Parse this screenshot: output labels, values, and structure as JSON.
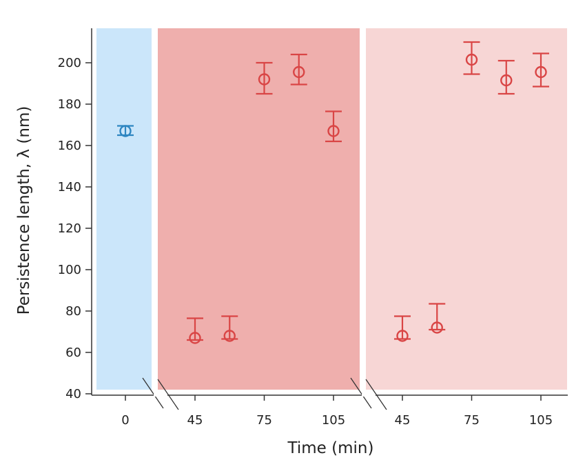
{
  "chart_data": {
    "type": "scatter",
    "title": "",
    "xlabel": "Time (min)",
    "ylabel": "Persistence length, λ (nm)",
    "ylim": [
      40,
      210
    ],
    "y_ticks": [
      40,
      60,
      80,
      100,
      120,
      140,
      160,
      180,
      200
    ],
    "grid": false,
    "axis_breaks": 2,
    "panels": [
      {
        "color": "#cbe6fa",
        "marker_color": "#2e86c1",
        "x_ticks": [
          0
        ],
        "points": [
          {
            "x": 0,
            "y": 167,
            "err_lo": 165,
            "err_hi": 169.5
          }
        ]
      },
      {
        "color": "#efafad",
        "marker_color": "#d94545",
        "x_ticks": [
          45,
          75,
          105
        ],
        "points": [
          {
            "x": 45,
            "y": 67,
            "err_lo": 66,
            "err_hi": 76.5
          },
          {
            "x": 60,
            "y": 68,
            "err_lo": 66.5,
            "err_hi": 77.5
          },
          {
            "x": 75,
            "y": 192,
            "err_lo": 185,
            "err_hi": 200
          },
          {
            "x": 90,
            "y": 195.5,
            "err_lo": 189.5,
            "err_hi": 204
          },
          {
            "x": 105,
            "y": 167,
            "err_lo": 162,
            "err_hi": 176.5
          }
        ]
      },
      {
        "color": "#f7d6d5",
        "marker_color": "#d94545",
        "x_ticks": [
          45,
          75,
          105
        ],
        "points": [
          {
            "x": 45,
            "y": 68,
            "err_lo": 66.5,
            "err_hi": 77.5
          },
          {
            "x": 60,
            "y": 72,
            "err_lo": 71,
            "err_hi": 83.5
          },
          {
            "x": 75,
            "y": 201.5,
            "err_lo": 194.5,
            "err_hi": 210
          },
          {
            "x": 90,
            "y": 191.5,
            "err_lo": 185,
            "err_hi": 201
          },
          {
            "x": 105,
            "y": 195.5,
            "err_lo": 188.5,
            "err_hi": 204.5
          }
        ]
      }
    ]
  }
}
